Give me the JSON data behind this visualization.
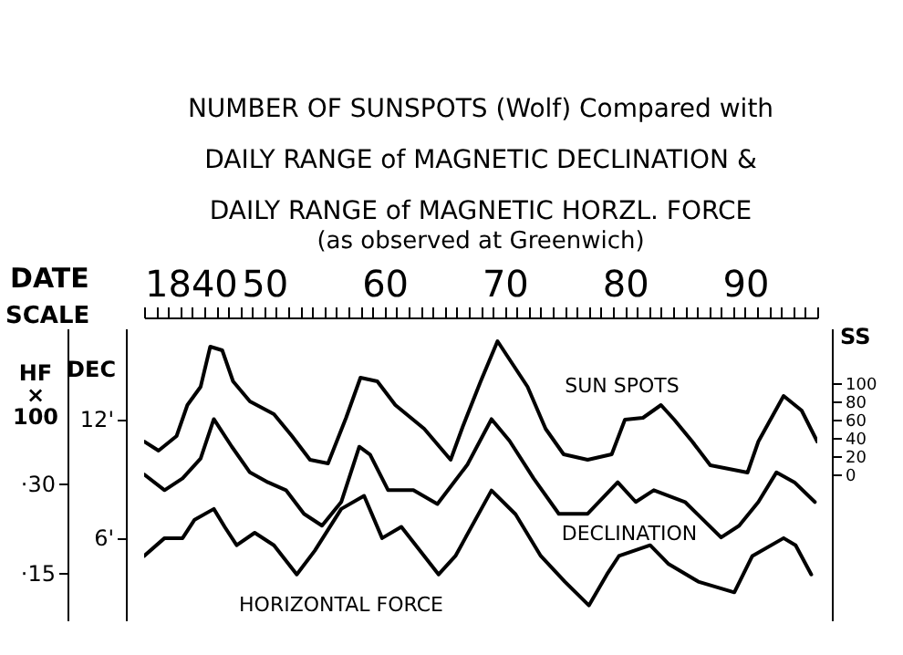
{
  "chart_data": {
    "type": "line",
    "title": "NUMBER OF SUNSPOTS (Wolf) Compared with DAILY RANGE of MAGNETIC DECLINATION & DAILY RANGE of MAGNETIC HORZL. FORCE",
    "subtitle": "(as observed at Greenwich)",
    "xlabel": "DATE",
    "ylabel": "DEC",
    "y2label": "SS",
    "y3label": "HF × 100",
    "annotations": [
      "SCALE"
    ],
    "xlim": [
      1840,
      1896
    ],
    "xticks": [
      {
        "value": 1840,
        "label": "1840"
      },
      {
        "value": 1841,
        "label": null
      },
      {
        "value": 1842,
        "label": null
      },
      {
        "value": 1843,
        "label": null
      },
      {
        "value": 1844,
        "label": null
      },
      {
        "value": 1845,
        "label": null
      },
      {
        "value": 1846,
        "label": null
      },
      {
        "value": 1847,
        "label": null
      },
      {
        "value": 1848,
        "label": null
      },
      {
        "value": 1849,
        "label": null
      },
      {
        "value": 1850,
        "label": "50"
      },
      {
        "value": 1851,
        "label": null
      },
      {
        "value": 1852,
        "label": null
      },
      {
        "value": 1853,
        "label": null
      },
      {
        "value": 1854,
        "label": null
      },
      {
        "value": 1855,
        "label": null
      },
      {
        "value": 1856,
        "label": null
      },
      {
        "value": 1857,
        "label": null
      },
      {
        "value": 1858,
        "label": null
      },
      {
        "value": 1859,
        "label": null
      },
      {
        "value": 1860,
        "label": "60"
      },
      {
        "value": 1861,
        "label": null
      },
      {
        "value": 1862,
        "label": null
      },
      {
        "value": 1863,
        "label": null
      },
      {
        "value": 1864,
        "label": null
      },
      {
        "value": 1865,
        "label": null
      },
      {
        "value": 1866,
        "label": null
      },
      {
        "value": 1867,
        "label": null
      },
      {
        "value": 1868,
        "label": null
      },
      {
        "value": 1869,
        "label": null
      },
      {
        "value": 1870,
        "label": "70"
      },
      {
        "value": 1871,
        "label": null
      },
      {
        "value": 1872,
        "label": null
      },
      {
        "value": 1873,
        "label": null
      },
      {
        "value": 1874,
        "label": null
      },
      {
        "value": 1875,
        "label": null
      },
      {
        "value": 1876,
        "label": null
      },
      {
        "value": 1877,
        "label": null
      },
      {
        "value": 1878,
        "label": null
      },
      {
        "value": 1879,
        "label": null
      },
      {
        "value": 1880,
        "label": "80"
      },
      {
        "value": 1881,
        "label": null
      },
      {
        "value": 1882,
        "label": null
      },
      {
        "value": 1883,
        "label": null
      },
      {
        "value": 1884,
        "label": null
      },
      {
        "value": 1885,
        "label": null
      },
      {
        "value": 1886,
        "label": null
      },
      {
        "value": 1887,
        "label": null
      },
      {
        "value": 1888,
        "label": null
      },
      {
        "value": 1889,
        "label": null
      },
      {
        "value": 1890,
        "label": "90"
      },
      {
        "value": 1891,
        "label": null
      },
      {
        "value": 1892,
        "label": null
      },
      {
        "value": 1893,
        "label": null
      },
      {
        "value": 1894,
        "label": null
      },
      {
        "value": 1895,
        "label": null
      },
      {
        "value": 1896,
        "label": null
      }
    ],
    "ylim": [
      1.8,
      16.6
    ],
    "yticks": [
      {
        "value": 12,
        "label": "12'"
      },
      {
        "value": 6,
        "label": "6'"
      }
    ],
    "y2lim": [
      -160,
      160
    ],
    "y2ticks": [
      0,
      20,
      40,
      60,
      80,
      100
    ],
    "y3lim": [
      7,
      56
    ],
    "y3ticks": [
      {
        "value": 30,
        "label": "·30"
      },
      {
        "value": 15,
        "label": "·15"
      }
    ],
    "grid": false,
    "line_style": "solid",
    "marker": "none",
    "series": [
      {
        "name": "SUN SPOTS",
        "color": "#000000",
        "axis": "y2",
        "x": [
          1840,
          1841.2,
          1842.7,
          1843.6,
          1844.7,
          1845.5,
          1846.5,
          1847.4,
          1848.8,
          1850.8,
          1852.3,
          1853.8,
          1855.3,
          1856.8,
          1858,
          1859.4,
          1860.9,
          1863.3,
          1865.5,
          1866.5,
          1868,
          1869.4,
          1870.4,
          1871.9,
          1873.4,
          1874.9,
          1876.9,
          1878.9,
          1880,
          1881.5,
          1883,
          1884.1,
          1885.6,
          1887.1,
          1890.2,
          1891.1,
          1893.2,
          1894.7,
          1896
        ],
        "values": [
          36,
          26,
          42,
          76,
          96,
          140,
          136,
          102,
          80,
          66,
          42,
          16,
          12,
          62,
          106,
          102,
          76,
          50,
          16,
          52,
          102,
          146,
          126,
          96,
          50,
          22,
          16,
          22,
          60,
          62,
          76,
          60,
          36,
          10,
          2,
          36,
          86,
          70,
          36
        ]
      },
      {
        "name": "DECLINATION",
        "color": "#000000",
        "axis": "y",
        "x": [
          1840,
          1841.7,
          1843.2,
          1844.7,
          1845.8,
          1847.3,
          1848.8,
          1850.3,
          1851.8,
          1853.3,
          1854.8,
          1856.4,
          1857.9,
          1858.8,
          1860.3,
          1862.4,
          1864.4,
          1866.9,
          1868.9,
          1870.4,
          1872.4,
          1874.5,
          1876.9,
          1879.4,
          1880.9,
          1882.4,
          1885,
          1888,
          1889.5,
          1891.1,
          1892.6,
          1894.1,
          1895.8
        ],
        "values": [
          9.2,
          8.4,
          9.0,
          10.0,
          12.0,
          10.6,
          9.3,
          8.8,
          8.4,
          7.2,
          6.6,
          7.8,
          10.6,
          10.2,
          8.4,
          8.4,
          7.7,
          9.7,
          12.0,
          10.9,
          9.0,
          7.2,
          7.2,
          8.8,
          7.8,
          8.4,
          7.8,
          6.0,
          6.6,
          7.8,
          9.3,
          8.8,
          7.8
        ]
      },
      {
        "name": "HORIZONTAL FORCE",
        "color": "#000000",
        "axis": "y3",
        "x": [
          1840,
          1841.7,
          1843.2,
          1844.2,
          1845.8,
          1846.7,
          1847.7,
          1849.2,
          1850.8,
          1852.7,
          1854.2,
          1856.4,
          1858.3,
          1859.8,
          1861.4,
          1863.3,
          1864.5,
          1865.9,
          1868.9,
          1870.9,
          1873,
          1875,
          1877,
          1878.5,
          1879.5,
          1882.1,
          1883.6,
          1886.1,
          1889.1,
          1890.6,
          1893.2,
          1894.2,
          1895.5
        ],
        "values": [
          17.8,
          20.8,
          20.8,
          23.9,
          25.7,
          22.7,
          19.6,
          21.7,
          19.6,
          14.7,
          18.7,
          25.7,
          27.9,
          20.8,
          22.7,
          17.8,
          14.7,
          17.8,
          28.8,
          24.8,
          17.8,
          13.5,
          9.5,
          14.7,
          17.8,
          19.6,
          16.5,
          13.5,
          11.7,
          17.8,
          20.8,
          19.6,
          14.7
        ]
      }
    ]
  }
}
